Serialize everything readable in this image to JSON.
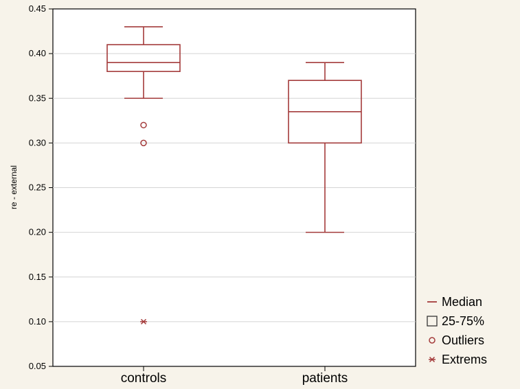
{
  "chart_data": {
    "type": "boxplot",
    "ylabel": "re - external",
    "ylim": [
      0.05,
      0.45
    ],
    "yticks": [
      0.05,
      0.1,
      0.15,
      0.2,
      0.25,
      0.3,
      0.35,
      0.4,
      0.45
    ],
    "ytick_labels": [
      "0.05",
      "0.10",
      "0.15",
      "0.20",
      "0.25",
      "0.30",
      "0.35",
      "0.40",
      "0.45"
    ],
    "grid": "horizontal",
    "legend_position": "bottom-right",
    "color": "#a33a3a",
    "groups": [
      {
        "label": "controls",
        "whisker_low": 0.35,
        "q1": 0.38,
        "median": 0.39,
        "q3": 0.41,
        "whisker_high": 0.43,
        "outliers": [
          0.32,
          0.3
        ],
        "extremes": [
          0.1
        ]
      },
      {
        "label": "patients",
        "whisker_low": 0.2,
        "q1": 0.3,
        "median": 0.335,
        "q3": 0.37,
        "whisker_high": 0.39,
        "outliers": [],
        "extremes": []
      }
    ],
    "legend": [
      {
        "symbol": "median",
        "label": "Median"
      },
      {
        "symbol": "box",
        "label": "25-75%"
      },
      {
        "symbol": "outlier",
        "label": "Outliers"
      },
      {
        "symbol": "extreme",
        "label": "Extrems"
      }
    ]
  }
}
